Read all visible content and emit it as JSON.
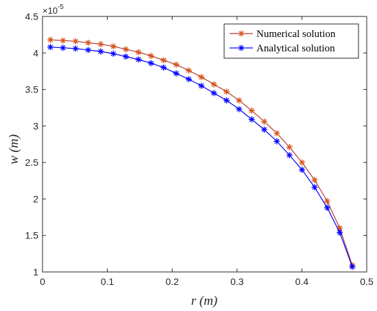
{
  "chart_data": {
    "type": "line",
    "xlabel": "r (m)",
    "ylabel": "w (m)",
    "xlim": [
      0,
      0.5
    ],
    "ylim": [
      1,
      4.5
    ],
    "y_multiplier": "×10",
    "y_exponent": "-5",
    "xticks": [
      "0",
      "0.1",
      "0.2",
      "0.3",
      "0.4",
      "0.5"
    ],
    "yticks": [
      "1",
      "1.5",
      "2",
      "2.5",
      "3",
      "3.5",
      "4",
      "4.5"
    ],
    "grid": false,
    "legend_position": "top-right",
    "x": [
      0.0122,
      0.0316,
      0.051,
      0.0704,
      0.0898,
      0.1092,
      0.1286,
      0.148,
      0.1674,
      0.1868,
      0.2062,
      0.2256,
      0.245,
      0.2644,
      0.2838,
      0.3032,
      0.3226,
      0.342,
      0.3614,
      0.3808,
      0.4002,
      0.4196,
      0.439,
      0.4584,
      0.4778
    ],
    "series": [
      {
        "name": "Numerical solution",
        "color": "#b03a2e",
        "marker_color": "#d95319",
        "values": [
          4.18,
          4.17,
          4.16,
          4.14,
          4.12,
          4.09,
          4.05,
          4.01,
          3.96,
          3.9,
          3.84,
          3.76,
          3.67,
          3.57,
          3.47,
          3.35,
          3.21,
          3.06,
          2.9,
          2.71,
          2.5,
          2.26,
          1.97,
          1.6,
          1.09
        ]
      },
      {
        "name": "Analytical solution",
        "color": "#0000ff",
        "marker_color": "#0000ff",
        "values": [
          4.08,
          4.07,
          4.06,
          4.04,
          4.02,
          3.99,
          3.95,
          3.91,
          3.86,
          3.8,
          3.72,
          3.64,
          3.55,
          3.45,
          3.35,
          3.23,
          3.09,
          2.95,
          2.79,
          2.6,
          2.4,
          2.16,
          1.88,
          1.54,
          1.07
        ]
      }
    ]
  }
}
